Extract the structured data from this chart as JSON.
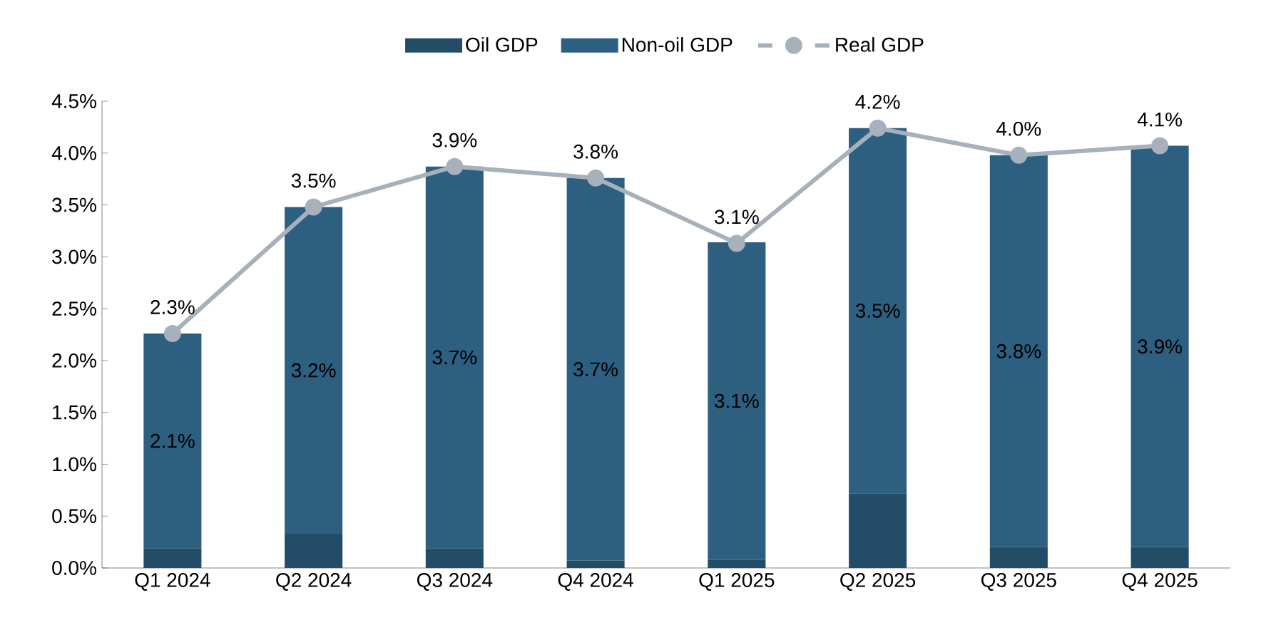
{
  "chart_data": {
    "type": "bar",
    "stacked": true,
    "legend": "top",
    "categories": [
      "Q1 2024",
      "Q2 2024",
      "Q3 2024",
      "Q4 2024",
      "Q1 2025",
      "Q2 2025",
      "Q3 2025",
      "Q4 2025"
    ],
    "series": [
      {
        "name": "Oil GDP",
        "color": "#234d66",
        "values": [
          0.19,
          0.33,
          0.19,
          0.07,
          0.08,
          0.72,
          0.2,
          0.2
        ]
      },
      {
        "name": "Non-oil GDP",
        "color": "#2d5f80",
        "values": [
          2.07,
          3.15,
          3.68,
          3.69,
          3.06,
          3.52,
          3.78,
          3.87
        ],
        "value_labels": [
          "2.1%",
          "3.2%",
          "3.7%",
          "3.7%",
          "3.1%",
          "3.5%",
          "3.8%",
          "3.9%"
        ]
      },
      {
        "name": "Real GDP",
        "type": "line",
        "color": "#a6b1bb",
        "marker": "circle",
        "values": [
          2.26,
          3.48,
          3.87,
          3.76,
          3.13,
          4.24,
          3.98,
          4.07
        ],
        "value_labels": [
          "2.3%",
          "3.5%",
          "3.9%",
          "3.8%",
          "3.1%",
          "4.2%",
          "4.0%",
          "4.1%"
        ]
      }
    ],
    "ylim": [
      0,
      4.5
    ],
    "yticks": [
      {
        "value": 0,
        "label": "0.0%"
      },
      {
        "value": 0.5,
        "label": "0.5%"
      },
      {
        "value": 1,
        "label": "1.0%"
      },
      {
        "value": 1.5,
        "label": "1.5%"
      },
      {
        "value": 2,
        "label": "2.0%"
      },
      {
        "value": 2.5,
        "label": "2.5%"
      },
      {
        "value": 3,
        "label": "3.0%"
      },
      {
        "value": 3.5,
        "label": "3.5%"
      },
      {
        "value": 4,
        "label": "4.0%"
      },
      {
        "value": 4.5,
        "label": "4.5%"
      }
    ]
  }
}
